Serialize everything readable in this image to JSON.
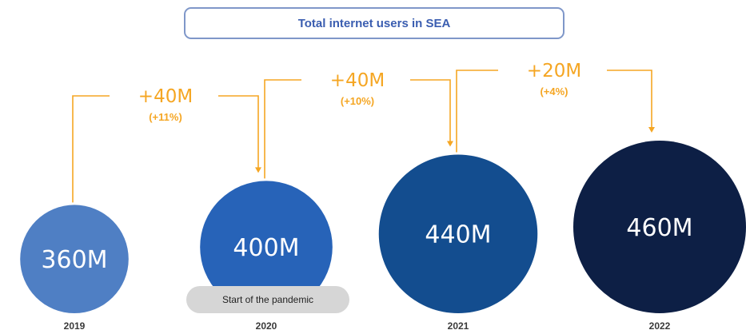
{
  "chart_data": {
    "type": "bubble",
    "title": "Total internet users in SEA",
    "categories": [
      "2019",
      "2020",
      "2021",
      "2022"
    ],
    "values": [
      360,
      400,
      440,
      460
    ],
    "value_labels": [
      "360M",
      "400M",
      "440M",
      "460M"
    ],
    "unit": "M",
    "changes": [
      {
        "from": "2019",
        "to": "2020",
        "label": "+40M",
        "percent": "(+11%)"
      },
      {
        "from": "2020",
        "to": "2021",
        "label": "+40M",
        "percent": "(+10%)"
      },
      {
        "from": "2021",
        "to": "2022",
        "label": "+20M",
        "percent": "(+4%)"
      }
    ],
    "annotation": {
      "year": "2020",
      "text": "Start of the pandemic"
    },
    "colors": [
      "#4f7fc4",
      "#2763b8",
      "#134d8f",
      "#0d1f45"
    ],
    "accent": "#f5a623"
  }
}
